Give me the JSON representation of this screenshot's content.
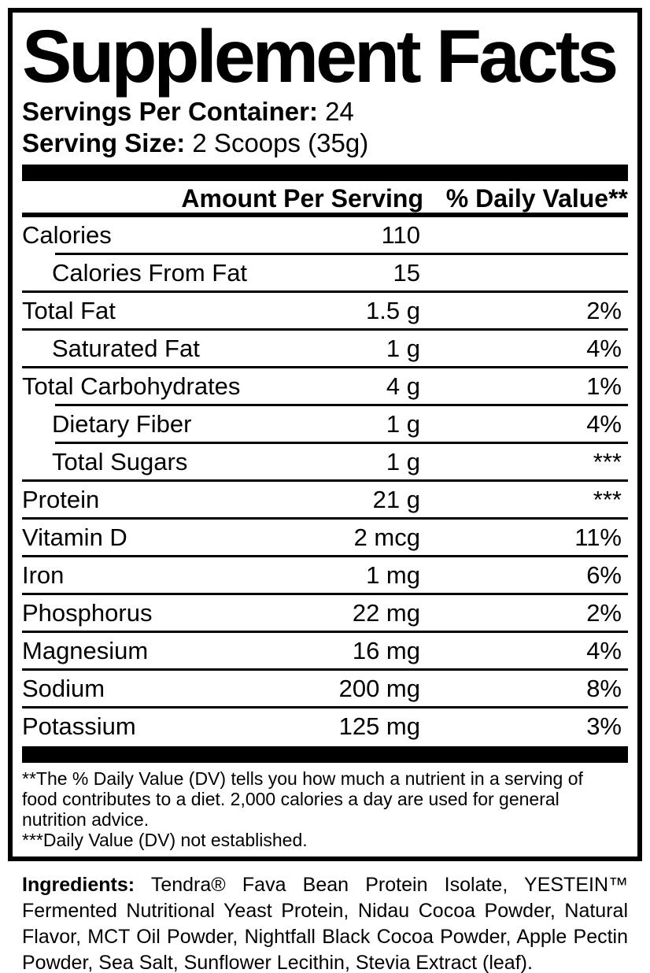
{
  "colors": {
    "ink": "#000000",
    "paper": "#ffffff"
  },
  "title": "Supplement Facts",
  "servings_per_container": {
    "label": "Servings Per Container:",
    "value": "24"
  },
  "serving_size": {
    "label": "Serving Size:",
    "value": "2 Scoops (35g)"
  },
  "columns": {
    "amount": "Amount Per Serving",
    "dv": "% Daily Value**"
  },
  "rows": [
    {
      "name": "Calories",
      "amount": "110",
      "dv": "",
      "indent": false,
      "sep": "indent"
    },
    {
      "name": "Calories From Fat",
      "amount": "15",
      "dv": "",
      "indent": true,
      "sep": "full"
    },
    {
      "name": "Total Fat",
      "amount": "1.5 g",
      "dv": "2%",
      "indent": false,
      "sep": "full"
    },
    {
      "name": "Saturated Fat",
      "amount": "1 g",
      "dv": "4%",
      "indent": true,
      "sep": "full"
    },
    {
      "name": "Total Carbohydrates",
      "amount": "4 g",
      "dv": "1%",
      "indent": false,
      "sep": "indent"
    },
    {
      "name": "Dietary Fiber",
      "amount": "1 g",
      "dv": "4%",
      "indent": true,
      "sep": "indent"
    },
    {
      "name": "Total Sugars",
      "amount": "1 g",
      "dv": "***",
      "indent": true,
      "sep": "full"
    },
    {
      "name": "Protein",
      "amount": "21 g",
      "dv": "***",
      "indent": false,
      "sep": "full"
    },
    {
      "name": "Vitamin D",
      "amount": "2 mcg",
      "dv": "11%",
      "indent": false,
      "sep": "full"
    },
    {
      "name": "Iron",
      "amount": "1 mg",
      "dv": "6%",
      "indent": false,
      "sep": "full"
    },
    {
      "name": "Phosphorus",
      "amount": "22 mg",
      "dv": "2%",
      "indent": false,
      "sep": "full"
    },
    {
      "name": "Magnesium",
      "amount": "16 mg",
      "dv": "4%",
      "indent": false,
      "sep": "full"
    },
    {
      "name": "Sodium",
      "amount": "200 mg",
      "dv": "8%",
      "indent": false,
      "sep": "full"
    },
    {
      "name": "Potassium",
      "amount": "125 mg",
      "dv": "3%",
      "indent": false,
      "sep": "none"
    }
  ],
  "footnote_lines": [
    "**The % Daily Value (DV) tells you how much a nutrient in a serving of",
    "food contributes to a diet. 2,000 calories a day are used for general",
    "nutrition advice.",
    "***Daily Value (DV) not established."
  ],
  "ingredients": {
    "label": "Ingredients:",
    "text": "Tendra® Fava Bean Protein Isolate, YESTEIN™ Fermented Nutritional Yeast Protein, Nidau Cocoa Powder, Natural Flavor, MCT Oil Powder, Nightfall Black Cocoa Powder, Apple Pectin Powder, Sea Salt, Sunflower Lecithin, Stevia Extract (leaf)."
  }
}
